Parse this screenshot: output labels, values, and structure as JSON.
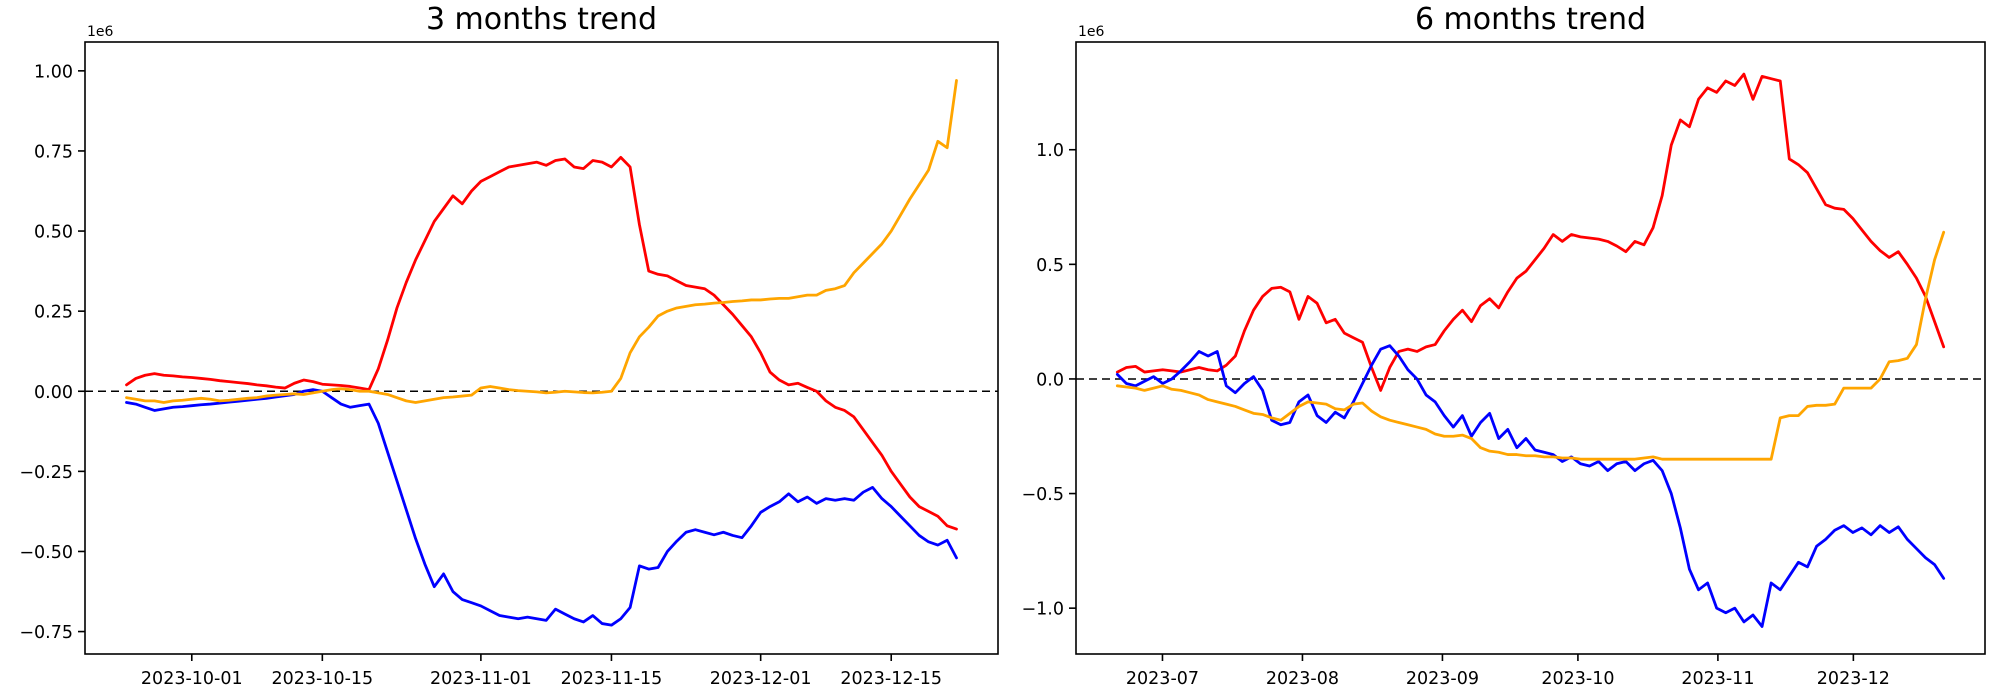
{
  "figure": {
    "background": "#ffffff",
    "text_color": "#000000"
  },
  "chart_data": [
    {
      "type": "line",
      "title": "3 months trend",
      "scale_note": "1e6",
      "x_tick_labels": [
        "2023-10-01",
        "2023-10-15",
        "2023-11-01",
        "2023-11-15",
        "2023-12-01",
        "2023-12-15"
      ],
      "x_tick_days": [
        7,
        21,
        38,
        52,
        68,
        82
      ],
      "xlim_days": [
        -4.45,
        93.45
      ],
      "x_start_day": 0,
      "x_end_day": 89,
      "y_ticks": [
        1.0,
        0.75,
        0.5,
        0.25,
        0.0,
        -0.25,
        -0.5,
        -0.75
      ],
      "y_tick_labels": [
        "1.00",
        "0.75",
        "0.50",
        "0.25",
        "0.00",
        "−0.25",
        "−0.50",
        "−0.75"
      ],
      "ylim": [
        -0.82,
        1.09
      ],
      "zero_line": {
        "show": true,
        "color": "#000000",
        "style": "dashed"
      },
      "grid": false,
      "legend": "none",
      "series": [
        {
          "name": "red-line",
          "color": "#ff0000",
          "values": [
            0.02,
            0.04,
            0.05,
            0.055,
            0.05,
            0.048,
            0.045,
            0.043,
            0.04,
            0.037,
            0.033,
            0.03,
            0.027,
            0.024,
            0.02,
            0.017,
            0.013,
            0.01,
            0.025,
            0.035,
            0.03,
            0.022,
            0.02,
            0.018,
            0.015,
            0.01,
            0.005,
            0.07,
            0.16,
            0.26,
            0.34,
            0.41,
            0.47,
            0.53,
            0.57,
            0.61,
            0.585,
            0.625,
            0.655,
            0.67,
            0.685,
            0.7,
            0.705,
            0.71,
            0.715,
            0.705,
            0.72,
            0.725,
            0.7,
            0.695,
            0.72,
            0.715,
            0.7,
            0.73,
            0.7,
            0.52,
            0.375,
            0.365,
            0.36,
            0.345,
            0.33,
            0.325,
            0.32,
            0.3,
            0.27,
            0.24,
            0.205,
            0.17,
            0.12,
            0.06,
            0.035,
            0.02,
            0.025,
            0.012,
            0.0,
            -0.03,
            -0.05,
            -0.06,
            -0.08,
            -0.12,
            -0.16,
            -0.2,
            -0.25,
            -0.29,
            -0.33,
            -0.36,
            -0.375,
            -0.39,
            -0.42,
            -0.43
          ]
        },
        {
          "name": "blue-line",
          "color": "#0000ff",
          "values": [
            -0.035,
            -0.04,
            -0.05,
            -0.06,
            -0.055,
            -0.05,
            -0.048,
            -0.045,
            -0.042,
            -0.04,
            -0.037,
            -0.034,
            -0.031,
            -0.028,
            -0.025,
            -0.022,
            -0.018,
            -0.014,
            -0.01,
            0.0,
            0.005,
            0.0,
            -0.02,
            -0.04,
            -0.05,
            -0.045,
            -0.04,
            -0.1,
            -0.19,
            -0.28,
            -0.37,
            -0.46,
            -0.54,
            -0.61,
            -0.57,
            -0.625,
            -0.65,
            -0.66,
            -0.67,
            -0.685,
            -0.7,
            -0.705,
            -0.71,
            -0.705,
            -0.71,
            -0.715,
            -0.68,
            -0.695,
            -0.71,
            -0.72,
            -0.7,
            -0.725,
            -0.73,
            -0.71,
            -0.675,
            -0.545,
            -0.555,
            -0.55,
            -0.5,
            -0.468,
            -0.44,
            -0.432,
            -0.44,
            -0.448,
            -0.44,
            -0.45,
            -0.457,
            -0.42,
            -0.378,
            -0.36,
            -0.345,
            -0.32,
            -0.345,
            -0.33,
            -0.35,
            -0.335,
            -0.34,
            -0.335,
            -0.34,
            -0.315,
            -0.3,
            -0.335,
            -0.36,
            -0.39,
            -0.42,
            -0.45,
            -0.47,
            -0.48,
            -0.465,
            -0.52
          ]
        },
        {
          "name": "orange-line",
          "color": "#ffa500",
          "values": [
            -0.02,
            -0.025,
            -0.03,
            -0.03,
            -0.035,
            -0.03,
            -0.028,
            -0.025,
            -0.022,
            -0.025,
            -0.03,
            -0.028,
            -0.025,
            -0.022,
            -0.02,
            -0.015,
            -0.012,
            -0.01,
            -0.008,
            -0.01,
            -0.005,
            0.0,
            0.005,
            0.008,
            0.005,
            0.0,
            0.0,
            -0.005,
            -0.01,
            -0.02,
            -0.03,
            -0.035,
            -0.03,
            -0.025,
            -0.02,
            -0.018,
            -0.015,
            -0.012,
            0.01,
            0.015,
            0.01,
            0.005,
            0.002,
            0.0,
            -0.002,
            -0.005,
            -0.003,
            0.0,
            -0.002,
            -0.004,
            -0.005,
            -0.003,
            0.0,
            0.04,
            0.12,
            0.17,
            0.2,
            0.235,
            0.25,
            0.26,
            0.265,
            0.27,
            0.272,
            0.275,
            0.277,
            0.28,
            0.282,
            0.285,
            0.285,
            0.288,
            0.29,
            0.29,
            0.295,
            0.3,
            0.3,
            0.315,
            0.32,
            0.33,
            0.37,
            0.4,
            0.43,
            0.46,
            0.5,
            0.55,
            0.6,
            0.645,
            0.69,
            0.78,
            0.76,
            0.97
          ]
        }
      ]
    },
    {
      "type": "line",
      "title": "6 months trend",
      "scale_note": "1e6",
      "x_tick_labels": [
        "2023-07",
        "2023-08",
        "2023-09",
        "2023-10",
        "2023-11",
        "2023-12"
      ],
      "x_tick_days": [
        10,
        41,
        72,
        102,
        133,
        163
      ],
      "xlim_days": [
        -9.15,
        192.15
      ],
      "x_start_day": 0,
      "x_end_day": 183,
      "y_ticks": [
        1.0,
        0.5,
        0.0,
        -0.5,
        -1.0
      ],
      "y_tick_labels": [
        "1.0",
        "0.5",
        "0.0",
        "−0.5",
        "−1.0"
      ],
      "ylim": [
        -1.2,
        1.47
      ],
      "zero_line": {
        "show": true,
        "color": "#000000",
        "style": "dashed"
      },
      "grid": false,
      "legend": "none",
      "series": [
        {
          "name": "red-line",
          "color": "#ff0000",
          "values": [
            0.03,
            0.05,
            0.055,
            0.03,
            0.035,
            0.04,
            0.035,
            0.03,
            0.04,
            0.05,
            0.04,
            0.035,
            0.06,
            0.1,
            0.21,
            0.3,
            0.36,
            0.395,
            0.4,
            0.38,
            0.26,
            0.36,
            0.33,
            0.245,
            0.26,
            0.2,
            0.18,
            0.16,
            0.05,
            -0.05,
            0.05,
            0.12,
            0.13,
            0.12,
            0.14,
            0.15,
            0.21,
            0.26,
            0.3,
            0.25,
            0.32,
            0.35,
            0.31,
            0.38,
            0.44,
            0.47,
            0.52,
            0.57,
            0.63,
            0.6,
            0.63,
            0.62,
            0.615,
            0.61,
            0.6,
            0.58,
            0.555,
            0.6,
            0.585,
            0.66,
            0.8,
            1.02,
            1.13,
            1.1,
            1.22,
            1.27,
            1.25,
            1.3,
            1.28,
            1.33,
            1.22,
            1.32,
            1.31,
            1.3,
            0.96,
            0.935,
            0.9,
            0.83,
            0.76,
            0.745,
            0.74,
            0.7,
            0.65,
            0.6,
            0.56,
            0.53,
            0.555,
            0.5,
            0.44,
            0.36,
            0.25,
            0.14
          ]
        },
        {
          "name": "blue-line",
          "color": "#0000ff",
          "values": [
            0.02,
            -0.02,
            -0.03,
            -0.01,
            0.01,
            -0.02,
            0.0,
            0.035,
            0.075,
            0.12,
            0.1,
            0.12,
            -0.03,
            -0.06,
            -0.02,
            0.01,
            -0.05,
            -0.18,
            -0.2,
            -0.19,
            -0.1,
            -0.07,
            -0.16,
            -0.19,
            -0.145,
            -0.17,
            -0.1,
            -0.02,
            0.06,
            0.13,
            0.145,
            0.1,
            0.04,
            0.0,
            -0.07,
            -0.1,
            -0.16,
            -0.21,
            -0.16,
            -0.25,
            -0.19,
            -0.15,
            -0.26,
            -0.22,
            -0.3,
            -0.26,
            -0.31,
            -0.32,
            -0.33,
            -0.36,
            -0.34,
            -0.37,
            -0.38,
            -0.36,
            -0.4,
            -0.37,
            -0.36,
            -0.4,
            -0.37,
            -0.355,
            -0.4,
            -0.5,
            -0.65,
            -0.83,
            -0.92,
            -0.89,
            -1.0,
            -1.02,
            -1.0,
            -1.06,
            -1.03,
            -1.08,
            -0.89,
            -0.92,
            -0.86,
            -0.8,
            -0.82,
            -0.73,
            -0.7,
            -0.66,
            -0.64,
            -0.67,
            -0.65,
            -0.68,
            -0.64,
            -0.67,
            -0.645,
            -0.7,
            -0.74,
            -0.78,
            -0.81,
            -0.87
          ]
        },
        {
          "name": "orange-line",
          "color": "#ffa500",
          "values": [
            -0.03,
            -0.035,
            -0.04,
            -0.05,
            -0.04,
            -0.03,
            -0.045,
            -0.05,
            -0.06,
            -0.07,
            -0.09,
            -0.1,
            -0.11,
            -0.12,
            -0.135,
            -0.15,
            -0.155,
            -0.17,
            -0.18,
            -0.15,
            -0.12,
            -0.1,
            -0.105,
            -0.11,
            -0.13,
            -0.135,
            -0.11,
            -0.105,
            -0.14,
            -0.165,
            -0.18,
            -0.19,
            -0.2,
            -0.21,
            -0.22,
            -0.24,
            -0.25,
            -0.25,
            -0.245,
            -0.26,
            -0.3,
            -0.315,
            -0.32,
            -0.33,
            -0.33,
            -0.335,
            -0.335,
            -0.34,
            -0.34,
            -0.345,
            -0.345,
            -0.35,
            -0.35,
            -0.35,
            -0.35,
            -0.35,
            -0.35,
            -0.35,
            -0.345,
            -0.34,
            -0.35,
            -0.35,
            -0.35,
            -0.35,
            -0.35,
            -0.35,
            -0.35,
            -0.35,
            -0.35,
            -0.35,
            -0.35,
            -0.35,
            -0.35,
            -0.17,
            -0.16,
            -0.16,
            -0.12,
            -0.115,
            -0.115,
            -0.11,
            -0.04,
            -0.04,
            -0.04,
            -0.04,
            0.0,
            0.075,
            0.08,
            0.09,
            0.15,
            0.35,
            0.52,
            0.64
          ]
        }
      ]
    }
  ]
}
